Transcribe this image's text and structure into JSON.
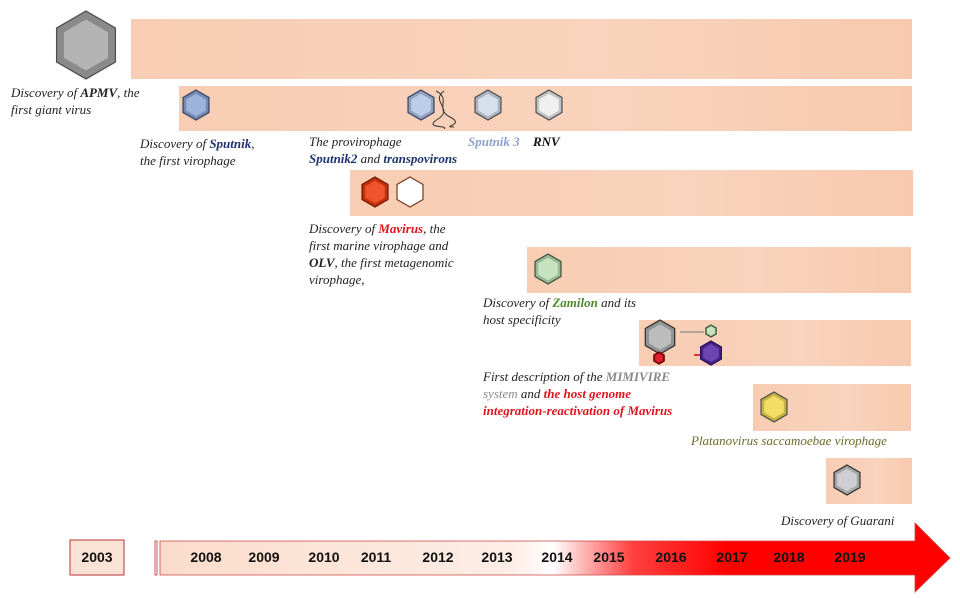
{
  "colors": {
    "bar": "#f8cdb3",
    "accent_red": "#ff0000",
    "mavirus_red": "#e0141e",
    "sputnik_blue": "#1f3370",
    "zamilon_green": "#4f8a2a"
  },
  "events": [
    {
      "segments": [
        {
          "t": "Discovery of "
        },
        {
          "t": "APMV",
          "c": "b"
        },
        {
          "t": ", the"
        }
      ],
      "line2": "first giant virus"
    },
    {
      "segments": [
        {
          "t": "Discovery of "
        },
        {
          "t": "Sputnik",
          "c": "navy"
        },
        {
          "t": ","
        }
      ],
      "line2": "the first virophage"
    },
    {
      "line1": "The provirophage",
      "segments": [
        {
          "t": "Sputnik2",
          "c": "navy"
        },
        {
          "t": " and "
        },
        {
          "t": "transpovirons",
          "c": "navy"
        }
      ]
    },
    {
      "label": "Sputnik 3"
    },
    {
      "label": "RNV"
    },
    {
      "segments": [
        {
          "t": "Discovery of "
        },
        {
          "t": "Mavirus",
          "c": "red"
        },
        {
          "t": ", the"
        }
      ],
      "line2": "first marine virophage and",
      "segments3": [
        {
          "t": "OLV",
          "c": "b"
        },
        {
          "t": ", the first metagenomic"
        }
      ],
      "line4": "virophage,"
    },
    {
      "segments": [
        {
          "t": "Discovery of "
        },
        {
          "t": "Zamilon",
          "c": "green"
        },
        {
          "t": " and its"
        }
      ],
      "line2": "host specificity"
    },
    {
      "segments": [
        {
          "t": "First description of the "
        },
        {
          "t": "MIMIVIRE",
          "c": "grey"
        }
      ],
      "segments2": [
        {
          "t": "system",
          "c": "greyn"
        },
        {
          "t": " and "
        },
        {
          "t": "the host genome",
          "c": "red"
        }
      ],
      "line3": "integration-reactivation of Mavirus"
    },
    {
      "label": "Platanovirus saccamoebae virophage"
    },
    {
      "label": "Discovery of Guarani"
    }
  ],
  "hexagons": [
    {
      "name": "apmv-hexagon-icon",
      "fill": "#a9a9a9",
      "edge": "#555"
    },
    {
      "name": "sputnik-hexagon-icon",
      "fill": "#8fa9d8",
      "edge": "#3b4a70"
    },
    {
      "name": "sputnik2-hexagon-icon",
      "fill": "#b3c6e4",
      "edge": "#3b4a70"
    },
    {
      "name": "sputnik3-hexagon-icon",
      "fill": "#d2dbe8",
      "edge": "#555"
    },
    {
      "name": "rnv-hexagon-icon",
      "fill": "#eeeeee",
      "edge": "#555"
    },
    {
      "name": "mavirus-hexagon-icon",
      "fill": "#f03c10",
      "edge": "#7a1a00"
    },
    {
      "name": "olv-hexagon-icon",
      "fill": "#ffffff",
      "edge": "#7a3a20"
    },
    {
      "name": "zamilon-hexagon-icon",
      "fill": "#bfe0b8",
      "edge": "#3f5a3f"
    },
    {
      "name": "mimivirus-hexagon-icon",
      "fill": "#b3b3b3",
      "edge": "#333"
    },
    {
      "name": "zamilon-small-hexagon-icon",
      "fill": "#bfe0b8",
      "edge": "#3f5a3f"
    },
    {
      "name": "mavirus-small-hexagon-icon",
      "fill": "#e00010",
      "edge": "#600"
    },
    {
      "name": "purple-hexagon-icon",
      "fill": "#5a2aa8",
      "edge": "#2a1060"
    },
    {
      "name": "platanovirus-hexagon-icon",
      "fill": "#f2da50",
      "edge": "#555"
    },
    {
      "name": "guarani-hexagon-icon",
      "fill": "#c8c8cc",
      "edge": "#333"
    }
  ],
  "timeline": {
    "first_year": "2003",
    "years": [
      "2008",
      "2009",
      "2010",
      "2011",
      "2012",
      "2013",
      "2014",
      "2015",
      "2016",
      "2017",
      "2018",
      "2019"
    ]
  }
}
